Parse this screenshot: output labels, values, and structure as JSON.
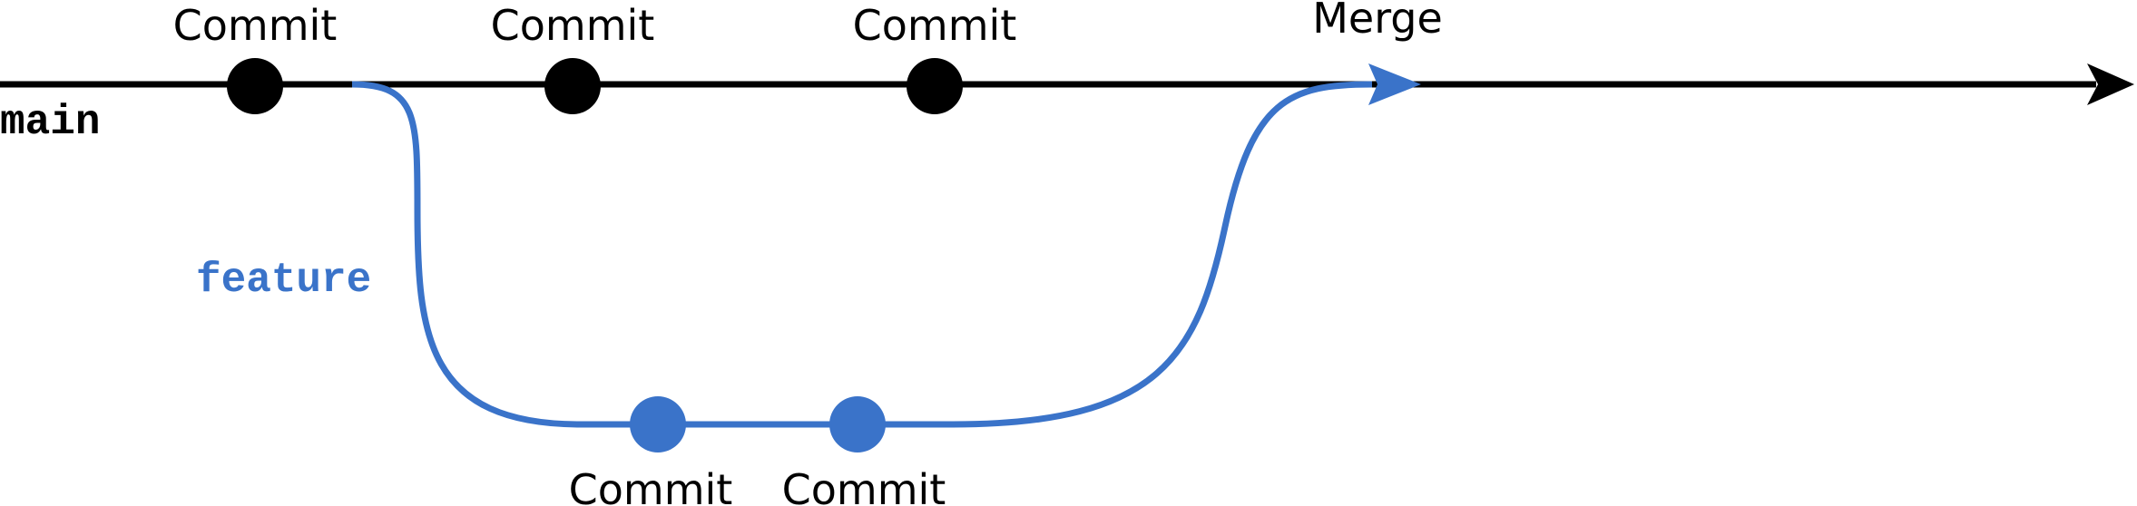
{
  "colors": {
    "main": "#000000",
    "feature": "#3a73c9"
  },
  "branches": {
    "main_label": "main",
    "feature_label": "feature"
  },
  "main_commits": [
    {
      "label": "Commit"
    },
    {
      "label": "Commit"
    },
    {
      "label": "Commit"
    }
  ],
  "feature_commits": [
    {
      "label": "Commit"
    },
    {
      "label": "Commit"
    }
  ],
  "merge": {
    "label": "Merge"
  }
}
